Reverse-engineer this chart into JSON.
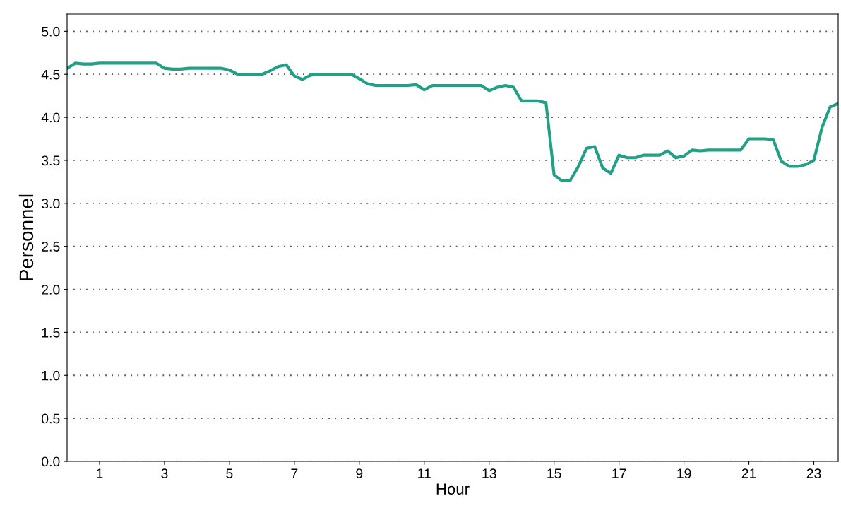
{
  "chart_data": {
    "type": "line",
    "xlabel": "Hour",
    "ylabel": "Personnel",
    "x": [
      0,
      0.25,
      0.5,
      0.75,
      1,
      1.25,
      1.5,
      1.75,
      2,
      2.25,
      2.5,
      2.75,
      3,
      3.25,
      3.5,
      3.75,
      4,
      4.25,
      4.5,
      4.75,
      5,
      5.25,
      5.5,
      5.75,
      6,
      6.25,
      6.5,
      6.75,
      7,
      7.25,
      7.5,
      7.75,
      8,
      8.25,
      8.5,
      8.75,
      9,
      9.25,
      9.5,
      9.75,
      10,
      10.25,
      10.5,
      10.75,
      11,
      11.25,
      11.5,
      11.75,
      12,
      12.25,
      12.5,
      12.75,
      13,
      13.25,
      13.5,
      13.75,
      14,
      14.25,
      14.5,
      14.75,
      15,
      15.25,
      15.5,
      15.75,
      16,
      16.25,
      16.5,
      16.75,
      17,
      17.25,
      17.5,
      17.75,
      18,
      18.25,
      18.5,
      18.75,
      19,
      19.25,
      19.5,
      19.75,
      20,
      20.25,
      20.5,
      20.75,
      21,
      21.25,
      21.5,
      21.75,
      22,
      22.25,
      22.5,
      22.75,
      23,
      23.25,
      23.5,
      23.75
    ],
    "series": [
      {
        "color": "#21a086",
        "values": [
          4.57,
          4.63,
          4.62,
          4.62,
          4.63,
          4.63,
          4.63,
          4.63,
          4.63,
          4.63,
          4.63,
          4.63,
          4.57,
          4.56,
          4.56,
          4.57,
          4.57,
          4.57,
          4.57,
          4.57,
          4.55,
          4.5,
          4.5,
          4.5,
          4.5,
          4.54,
          4.59,
          4.61,
          4.48,
          4.44,
          4.49,
          4.5,
          4.5,
          4.5,
          4.5,
          4.5,
          4.45,
          4.39,
          4.37,
          4.37,
          4.37,
          4.37,
          4.37,
          4.38,
          4.32,
          4.37,
          4.37,
          4.37,
          4.37,
          4.37,
          4.37,
          4.37,
          4.31,
          4.35,
          4.37,
          4.35,
          4.19,
          4.19,
          4.19,
          4.17,
          3.33,
          3.26,
          3.27,
          3.43,
          3.64,
          3.66,
          3.41,
          3.35,
          3.56,
          3.53,
          3.53,
          3.56,
          3.56,
          3.56,
          3.61,
          3.53,
          3.55,
          3.62,
          3.61,
          3.62,
          3.62,
          3.62,
          3.62,
          3.62,
          3.75,
          3.75,
          3.75,
          3.74,
          3.49,
          3.43,
          3.43,
          3.45,
          3.5,
          3.88,
          4.12,
          4.16
        ]
      }
    ],
    "xlim": [
      0,
      23.75
    ],
    "xticks": [
      1,
      3,
      5,
      7,
      9,
      11,
      13,
      15,
      17,
      19,
      21,
      23
    ],
    "ylim": [
      0,
      5.2
    ],
    "yticks": [
      {
        "value": 0,
        "label": "0.0"
      },
      {
        "value": 0.5,
        "label": "0.5"
      },
      {
        "value": 1,
        "label": "1.0"
      },
      {
        "value": 1.5,
        "label": "1.5"
      },
      {
        "value": 2,
        "label": "2.0"
      },
      {
        "value": 2.5,
        "label": "2.5"
      },
      {
        "value": 3,
        "label": "3.0"
      },
      {
        "value": 3.5,
        "label": "3.5"
      },
      {
        "value": 4,
        "label": "4.0"
      },
      {
        "value": 4.5,
        "label": "4.5"
      },
      {
        "value": 5,
        "label": "5.0"
      }
    ],
    "grid": "y",
    "line_style": "solid",
    "marker": "none"
  }
}
